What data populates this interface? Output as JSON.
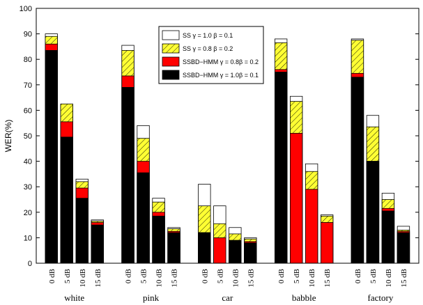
{
  "chart_data": {
    "type": "bar",
    "ylabel": "WER(%)",
    "ylim": [
      0,
      100
    ],
    "yticks": [
      0,
      10,
      20,
      30,
      40,
      50,
      60,
      70,
      80,
      90,
      100
    ],
    "groups": [
      "white",
      "pink",
      "car",
      "babble",
      "factory"
    ],
    "conditions": [
      "0 dB",
      "5 dB",
      "10 dB",
      "15 dB"
    ],
    "stacking": "overlapped",
    "legend_position": "top-center",
    "series": [
      {
        "name": "SS γ = 1.0 β = 0.1",
        "color": "#ffffff",
        "values": [
          [
            90.0,
            62.0,
            33.0,
            17.0
          ],
          [
            85.5,
            54.0,
            25.5,
            14.0
          ],
          [
            31.0,
            22.5,
            14.0,
            10.0
          ],
          [
            88.0,
            65.5,
            39.0,
            19.0
          ],
          [
            88.0,
            58.0,
            27.5,
            14.5
          ]
        ]
      },
      {
        "name": "SS γ = 0.8 β = 0.2",
        "color": "#ffff33",
        "hatch": true,
        "values": [
          [
            89.0,
            62.5,
            32.0,
            16.5
          ],
          [
            83.5,
            49.0,
            24.0,
            13.5
          ],
          [
            22.5,
            15.5,
            11.5,
            9.5
          ],
          [
            86.5,
            63.5,
            36.0,
            18.5
          ],
          [
            87.5,
            53.5,
            25.0,
            13.0
          ]
        ]
      },
      {
        "name": "SSBD−HMM γ = 0.8β = 0.2",
        "color": "#ff0000",
        "values": [
          [
            86.0,
            55.5,
            29.5,
            16.0
          ],
          [
            73.5,
            40.0,
            20.0,
            12.5
          ],
          [
            12.0,
            10.0,
            8.5,
            8.5
          ],
          [
            76.0,
            51.0,
            29.0,
            16.0
          ],
          [
            74.5,
            40.0,
            21.5,
            12.5
          ]
        ]
      },
      {
        "name": "SSBD−HMM γ = 1.0β = 0.1",
        "color": "#000000",
        "values": [
          [
            83.5,
            49.5,
            25.5,
            15.0
          ],
          [
            69.0,
            35.5,
            18.5,
            12.0
          ],
          [
            12.0,
            0,
            9.0,
            8.0
          ],
          [
            75.0,
            0,
            0,
            0
          ],
          [
            73.0,
            40.0,
            20.5,
            12.0
          ]
        ]
      }
    ]
  }
}
